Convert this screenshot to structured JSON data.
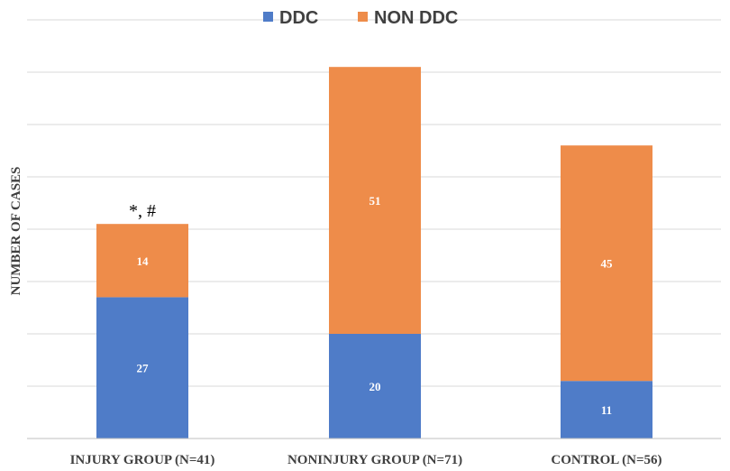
{
  "chart_data": {
    "type": "bar",
    "stacked": true,
    "title": "",
    "xlabel": "",
    "ylabel": "NUMBER OF CASES",
    "ylim": [
      0,
      80
    ],
    "grid": true,
    "legend_position": "top",
    "categories": [
      "INJURY GROUP (N=41)",
      "NONINJURY GROUP (N=71)",
      "CONTROL (N=56)"
    ],
    "series": [
      {
        "name": "DDC",
        "color": "#4f7cc8",
        "values": [
          27,
          20,
          11
        ]
      },
      {
        "name": "NON DDC",
        "color": "#ee8c4a",
        "values": [
          14,
          51,
          45
        ]
      }
    ],
    "annotations": [
      {
        "category": "INJURY GROUP (N=41)",
        "text": "*, #"
      }
    ]
  }
}
